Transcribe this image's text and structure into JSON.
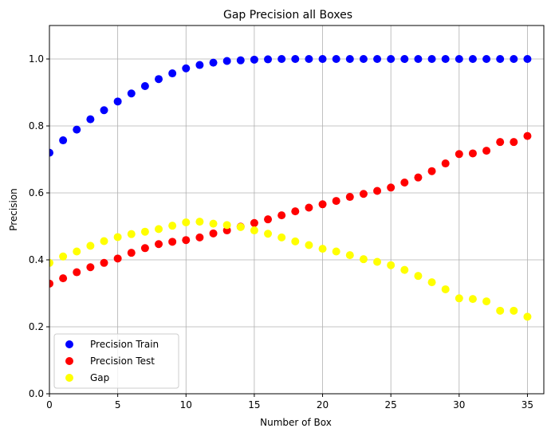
{
  "chart_data": {
    "type": "scatter",
    "title": "Gap Precision all Boxes",
    "xlabel": "Number of Box",
    "ylabel": "Precision",
    "xlim": [
      0,
      36.2
    ],
    "ylim": [
      0,
      1.1
    ],
    "xticks": [
      0,
      5,
      10,
      15,
      20,
      25,
      30,
      35
    ],
    "yticks": [
      0.0,
      0.2,
      0.4,
      0.6,
      0.8,
      1.0
    ],
    "xtick_labels": [
      "0",
      "5",
      "10",
      "15",
      "20",
      "25",
      "30",
      "35"
    ],
    "ytick_labels": [
      "0.0",
      "0.2",
      "0.4",
      "0.6",
      "0.8",
      "1.0"
    ],
    "grid": true,
    "legend_position": "lower-left",
    "x": [
      0,
      1,
      2,
      3,
      4,
      5,
      6,
      7,
      8,
      9,
      10,
      11,
      12,
      13,
      14,
      15,
      16,
      17,
      18,
      19,
      20,
      21,
      22,
      23,
      24,
      25,
      26,
      27,
      28,
      29,
      30,
      31,
      32,
      33,
      34,
      35
    ],
    "series": [
      {
        "name": "Precision Train",
        "color": "#0000ff",
        "values": [
          0.72,
          0.757,
          0.789,
          0.82,
          0.847,
          0.873,
          0.897,
          0.919,
          0.94,
          0.957,
          0.972,
          0.982,
          0.989,
          0.994,
          0.996,
          0.998,
          0.999,
          1.0,
          1.0,
          1.0,
          1.0,
          1.0,
          1.0,
          1.0,
          1.0,
          1.0,
          1.0,
          1.0,
          1.0,
          1.0,
          1.0,
          1.0,
          1.0,
          1.0,
          1.0,
          1.0
        ]
      },
      {
        "name": "Precision Test",
        "color": "#ff0000",
        "values": [
          0.329,
          0.345,
          0.363,
          0.378,
          0.391,
          0.404,
          0.421,
          0.435,
          0.447,
          0.454,
          0.459,
          0.467,
          0.479,
          0.488,
          0.499,
          0.51,
          0.521,
          0.533,
          0.545,
          0.556,
          0.566,
          0.576,
          0.588,
          0.597,
          0.606,
          0.616,
          0.631,
          0.646,
          0.665,
          0.688,
          0.716,
          0.718,
          0.726,
          0.752,
          0.752,
          0.77
        ]
      },
      {
        "name": "Gap",
        "color": "#ffff00",
        "values": [
          0.391,
          0.41,
          0.425,
          0.442,
          0.456,
          0.468,
          0.477,
          0.484,
          0.492,
          0.502,
          0.512,
          0.514,
          0.508,
          0.504,
          0.498,
          0.488,
          0.478,
          0.467,
          0.455,
          0.444,
          0.433,
          0.425,
          0.414,
          0.402,
          0.394,
          0.384,
          0.37,
          0.352,
          0.333,
          0.312,
          0.285,
          0.283,
          0.276,
          0.248,
          0.248,
          0.23
        ]
      }
    ]
  }
}
